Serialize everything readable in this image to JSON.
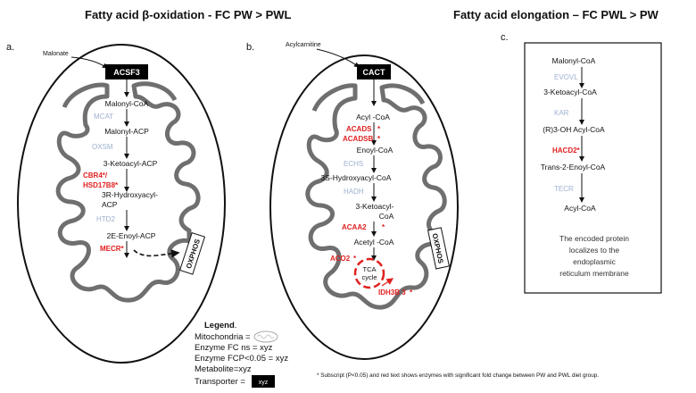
{
  "titles": {
    "left": "Fatty acid β-oxidation - FC PW > PWL",
    "right": "Fatty acid elongation  – FC PWL > PW"
  },
  "panel_a": {
    "label": "a.",
    "input_label": "Malonate",
    "transporter": "ACSF3",
    "oxphos": "OXPHOS",
    "steps": [
      {
        "text": "Malonyl-CoA",
        "kind": "metabolite"
      },
      {
        "text": "MCAT",
        "kind": "enzyme_ns"
      },
      {
        "text": "Malonyl-ACP",
        "kind": "metabolite"
      },
      {
        "text": "OXSM",
        "kind": "enzyme_ns"
      },
      {
        "text": "3-Ketoacyl-ACP",
        "kind": "metabolite"
      },
      {
        "text": "CBR4*/",
        "kind": "enzyme_sig"
      },
      {
        "text": "HSD17B8*",
        "kind": "enzyme_sig"
      },
      {
        "text": "3R-Hydroxyacyl-",
        "kind": "metabolite"
      },
      {
        "text": "ACP",
        "kind": "metabolite"
      },
      {
        "text": "HTD2",
        "kind": "enzyme_ns"
      },
      {
        "text": "2E-Enoyl-ACP",
        "kind": "metabolite"
      },
      {
        "text": "MECR*",
        "kind": "enzyme_sig"
      }
    ]
  },
  "panel_b": {
    "label": "b.",
    "input_label": "Acylcarnitine",
    "transporter": "CACT",
    "oxphos": "OXPHOS",
    "steps": [
      {
        "text": "Acyl -CoA",
        "kind": "metabolite"
      },
      {
        "text": "ACADS",
        "kind": "enzyme_sig"
      },
      {
        "text": "ACADSB",
        "kind": "enzyme_sig"
      },
      {
        "text": "Enoyl-CoA",
        "kind": "metabolite"
      },
      {
        "text": "ECHS",
        "kind": "enzyme_ns"
      },
      {
        "text": "3S-Hydroxyacyl-CoA",
        "kind": "metabolite"
      },
      {
        "text": "HADH",
        "kind": "enzyme_ns"
      },
      {
        "text": "3-Ketoacyl-",
        "kind": "metabolite"
      },
      {
        "text": "CoA",
        "kind": "metabolite"
      },
      {
        "text": "ACAA2",
        "kind": "enzyme_sig"
      },
      {
        "text": "Acetyl -CoA",
        "kind": "metabolite"
      },
      {
        "text": "ACO2",
        "kind": "enzyme_sig"
      },
      {
        "text": "IDH3B 3",
        "kind": "enzyme_sig"
      }
    ],
    "tca_line1": "TCA",
    "tca_line2": "cycle",
    "star": "*"
  },
  "panel_c": {
    "label": "c.",
    "steps": [
      {
        "text": "Malonyl-CoA",
        "kind": "metabolite"
      },
      {
        "text": "EVOVL",
        "kind": "enzyme_ns"
      },
      {
        "text": "3-Ketoacyl-CoA",
        "kind": "metabolite"
      },
      {
        "text": "KAR",
        "kind": "enzyme_ns"
      },
      {
        "text": "(R)3-OH Acyl-CoA",
        "kind": "metabolite"
      },
      {
        "text": "HACD2*",
        "kind": "enzyme_sig"
      },
      {
        "text": "Trans-2-Enoyl-CoA",
        "kind": "metabolite"
      },
      {
        "text": "TECR",
        "kind": "enzyme_ns"
      },
      {
        "text": "Acyl-CoA",
        "kind": "metabolite"
      }
    ],
    "note_lines": [
      "The encoded protein",
      "localizes to the",
      "endoplasmic",
      "reticulum membrane"
    ]
  },
  "legend": {
    "title": "Legend",
    "title_suffix": ".",
    "mitochondria": "Mitochondria =",
    "enzyme_ns": "Enzyme FC ns = xyz",
    "enzyme_sig": "Enzyme FCP<0.05 = xyz",
    "metabolite": "Metabolite=xyz",
    "transporter": "Transporter =",
    "transporter_box": "xyz"
  },
  "footnote": "* Subscript (P<0.05) and red text shows enzymes with significant fold change between PW and PWL diet group.",
  "colors": {
    "significant": "#e02020",
    "not_significant": "#9eb1cf",
    "membrane": "#6f6f6f",
    "transporter_bg": "#000000"
  }
}
